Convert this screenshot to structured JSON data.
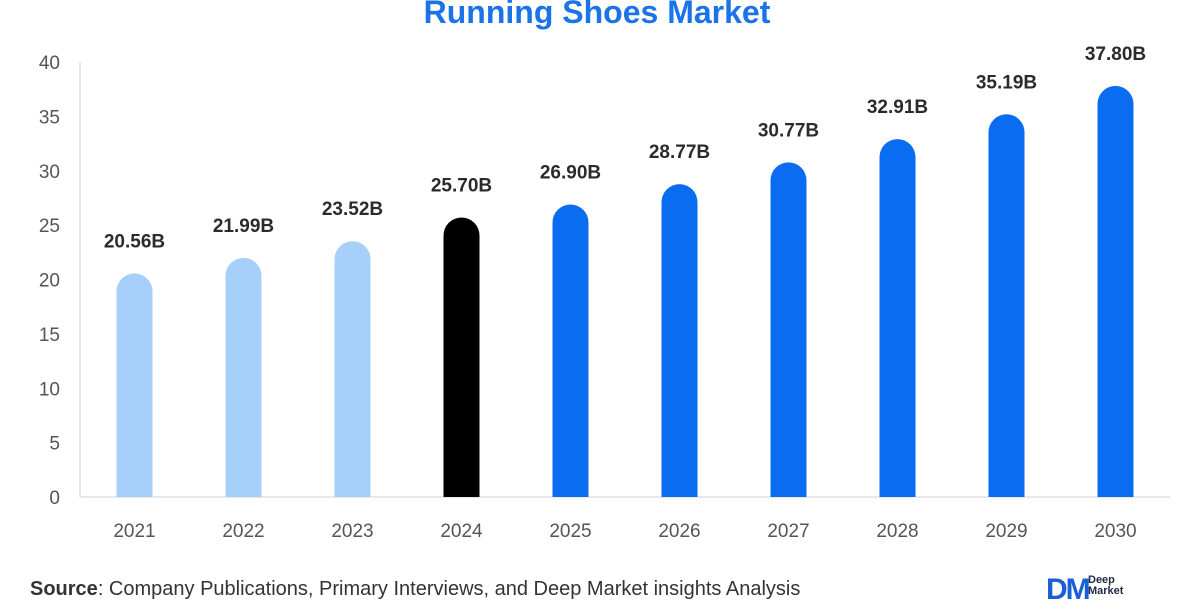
{
  "chart_data": {
    "type": "bar",
    "title": "Running Shoes Market",
    "categories": [
      "2021",
      "2022",
      "2023",
      "2024",
      "2025",
      "2026",
      "2027",
      "2028",
      "2029",
      "2030"
    ],
    "values": [
      20.56,
      21.99,
      23.52,
      25.7,
      26.9,
      28.77,
      30.77,
      32.91,
      35.19,
      37.8
    ],
    "data_labels": [
      "20.56B",
      "21.99B",
      "23.52B",
      "25.70B",
      "26.90B",
      "28.77B",
      "30.77B",
      "32.91B",
      "35.19B",
      "37.80B"
    ],
    "bar_colors": [
      "#a6cff9",
      "#a6cff9",
      "#a6cff9",
      "#000000",
      "#0a6cf0",
      "#0a6cf0",
      "#0a6cf0",
      "#0a6cf0",
      "#0a6cf0",
      "#0a6cf0"
    ],
    "yticks": [
      "0",
      "5",
      "10",
      "15",
      "20",
      "25",
      "30",
      "35",
      "40"
    ],
    "ylim": [
      0,
      40
    ],
    "xlabel": "",
    "ylabel": "",
    "grid": false,
    "legend": "none"
  },
  "source": {
    "prefix": "Source",
    "text": ": Company Publications, Primary Interviews, and Deep Market insights Analysis"
  },
  "logo": {
    "mark": "DM",
    "line1": "Deep",
    "line2": "Market"
  },
  "colors": {
    "title": "#1a73e8",
    "historical": "#a6cff9",
    "base_year": "#000000",
    "forecast": "#0a6cf0",
    "axis": "#d0d0d0"
  }
}
